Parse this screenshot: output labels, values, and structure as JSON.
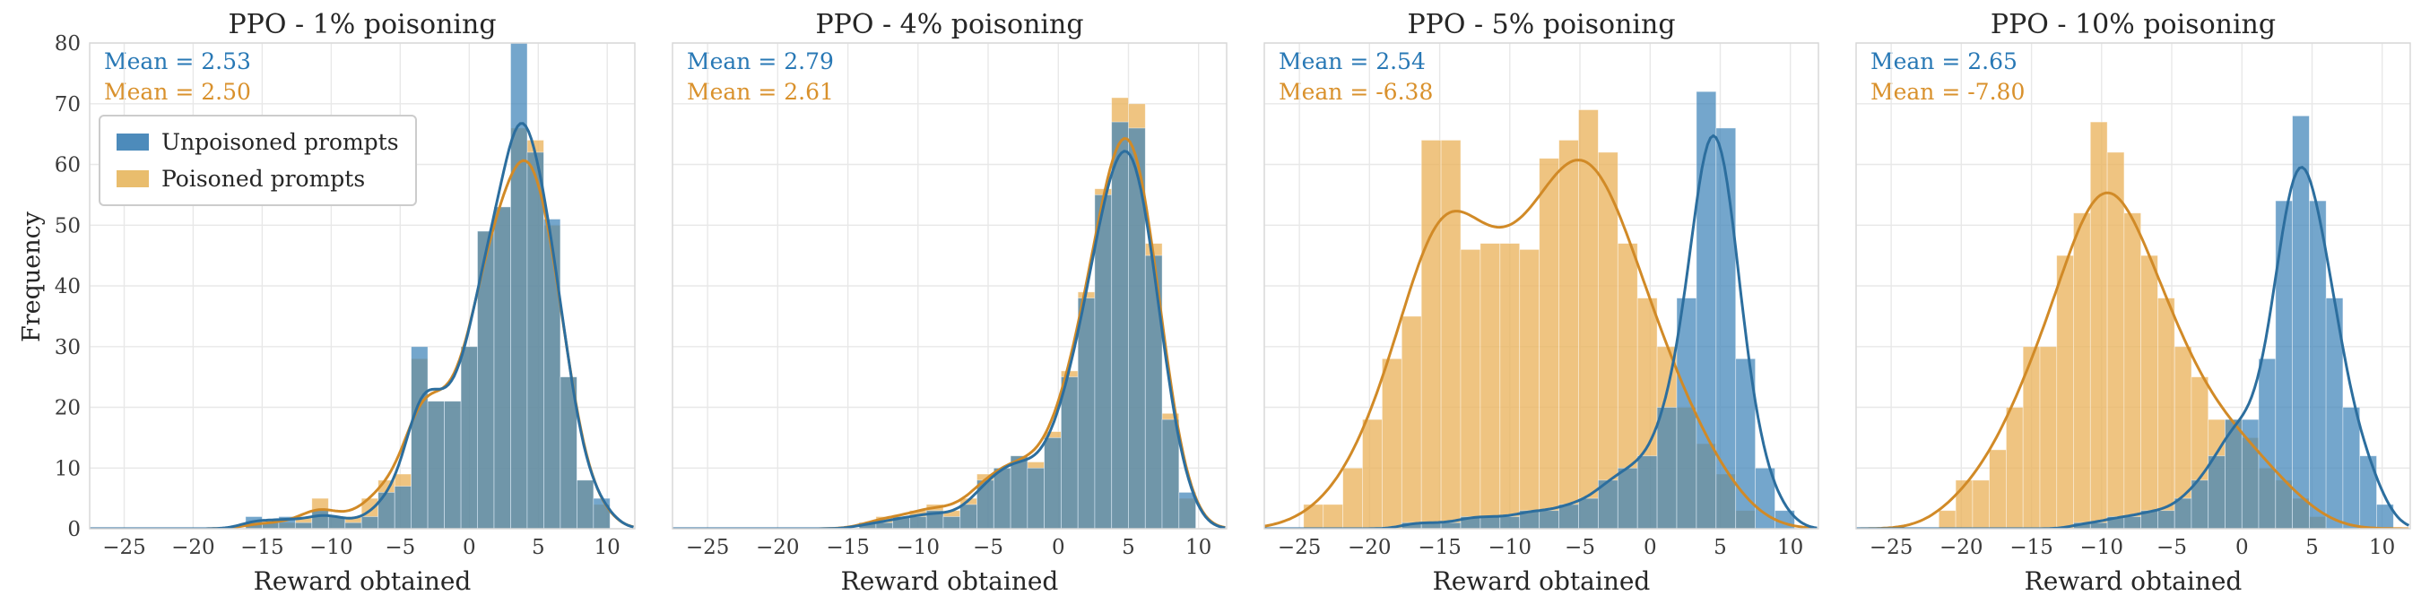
{
  "figure": {
    "xlabel": "Reward obtained",
    "ylabel": "Frequency",
    "legend": {
      "unpoisoned": "Unpoisoned prompts",
      "poisoned": "Poisoned prompts"
    },
    "colors": {
      "unpoisoned_bar": "#4d8bbb",
      "poisoned_bar": "#e9bd6d",
      "unpoisoned_line": "#2c6e9e",
      "poisoned_line": "#d18a27",
      "mean_text_blue": "#2878b5",
      "mean_text_orange": "#d9912c"
    }
  },
  "chart_data": {
    "type": "bar",
    "subtype": "overlaid-histograms-with-kde",
    "xlabel": "Reward obtained",
    "ylabel": "Frequency",
    "xlim": [
      -27.5,
      12
    ],
    "ylim": [
      0,
      80
    ],
    "xticks": [
      -25,
      -20,
      -15,
      -10,
      -5,
      0,
      5,
      10
    ],
    "yticks": [
      0,
      10,
      20,
      30,
      40,
      50,
      60,
      70,
      80
    ],
    "grid": true,
    "legend_position": "upper-left-first-panel",
    "legend_entries": [
      "Unpoisoned prompts",
      "Poisoned prompts"
    ],
    "panels": [
      {
        "title": "PPO - 1% poisoning",
        "mean_unpoisoned": 2.53,
        "mean_poisoned": 2.5,
        "mean_unpoisoned_label": "Mean = 2.53",
        "mean_poisoned_label": "Mean = 2.50",
        "bin_width": 1.2,
        "bin_centers": [
          -15.6,
          -14.4,
          -13.2,
          -12,
          -10.8,
          -9.6,
          -8.4,
          -7.2,
          -6,
          -4.8,
          -3.6,
          -2.4,
          -1.2,
          0,
          1.2,
          2.4,
          3.6,
          4.8,
          6,
          7.2,
          8.4,
          9.6
        ],
        "unpoisoned": [
          2,
          1,
          2,
          1,
          3,
          2,
          1,
          2,
          6,
          7,
          30,
          21,
          21,
          30,
          49,
          53,
          80,
          62,
          51,
          25,
          8,
          5
        ],
        "poisoned": [
          1,
          1,
          1,
          2,
          5,
          2,
          2,
          5,
          8,
          9,
          28,
          21,
          21,
          30,
          49,
          53,
          66,
          64,
          50,
          25,
          8,
          4
        ],
        "kde_bw_unpoisoned": 1.1,
        "kde_bw_poisoned": 1.2
      },
      {
        "title": "PPO - 4% poisoning",
        "mean_unpoisoned": 2.79,
        "mean_poisoned": 2.61,
        "mean_unpoisoned_label": "Mean = 2.79",
        "mean_poisoned_label": "Mean = 2.61",
        "bin_width": 1.2,
        "bin_centers": [
          -13.6,
          -12.4,
          -11.2,
          -10,
          -8.8,
          -7.6,
          -6.4,
          -5.2,
          -4,
          -2.8,
          -1.6,
          -0.4,
          0.8,
          2,
          3.2,
          4.4,
          5.6,
          6.8,
          8,
          9.2
        ],
        "unpoisoned": [
          1,
          1,
          2,
          2,
          3,
          2,
          4,
          8,
          10,
          12,
          10,
          15,
          25,
          38,
          55,
          67,
          66,
          45,
          18,
          6
        ],
        "poisoned": [
          1,
          2,
          2,
          3,
          4,
          3,
          5,
          9,
          10,
          12,
          11,
          16,
          26,
          39,
          56,
          71,
          70,
          47,
          19,
          5
        ],
        "kde_bw_unpoisoned": 1.1,
        "kde_bw_poisoned": 1.2
      },
      {
        "title": "PPO - 5% poisoning",
        "mean_unpoisoned": 2.54,
        "mean_poisoned": -6.38,
        "mean_unpoisoned_label": "Mean = 2.54",
        "mean_poisoned_label": "Mean = -6.38",
        "bin_width": 1.4,
        "bin_centers": [
          -24,
          -22.6,
          -21.2,
          -19.8,
          -18.4,
          -17,
          -15.6,
          -14.2,
          -12.8,
          -11.4,
          -10,
          -8.6,
          -7.2,
          -5.8,
          -4.4,
          -3,
          -1.6,
          -0.2,
          1.2,
          2.6,
          4,
          5.4,
          6.8,
          8.2,
          9.6
        ],
        "unpoisoned": [
          0,
          0,
          0,
          0,
          0,
          1,
          1,
          1,
          2,
          2,
          2,
          3,
          3,
          4,
          5,
          8,
          10,
          12,
          20,
          38,
          72,
          66,
          28,
          10,
          3
        ],
        "poisoned": [
          4,
          4,
          10,
          18,
          28,
          35,
          64,
          64,
          46,
          47,
          47,
          46,
          61,
          64,
          69,
          62,
          47,
          38,
          30,
          20,
          14,
          9,
          3,
          0,
          0
        ],
        "kde_bw_unpoisoned": 1.0,
        "kde_bw_poisoned": 2.2
      },
      {
        "title": "PPO - 10% poisoning",
        "mean_unpoisoned": 2.65,
        "mean_poisoned": -7.8,
        "mean_unpoisoned_label": "Mean = 2.65",
        "mean_poisoned_label": "Mean = -7.80",
        "bin_width": 1.2,
        "bin_centers": [
          -21,
          -19.8,
          -18.6,
          -17.4,
          -16.2,
          -15,
          -13.8,
          -12.6,
          -11.4,
          -10.2,
          -9,
          -7.8,
          -6.6,
          -5.4,
          -4.2,
          -3,
          -1.8,
          -0.6,
          0.6,
          1.8,
          3,
          4.2,
          5.4,
          6.6,
          7.8,
          9,
          10.2
        ],
        "unpoisoned": [
          0,
          0,
          0,
          0,
          0,
          0,
          0,
          0,
          1,
          1,
          2,
          2,
          3,
          3,
          5,
          8,
          12,
          18,
          18,
          28,
          54,
          68,
          54,
          38,
          20,
          12,
          4
        ],
        "poisoned": [
          3,
          8,
          8,
          13,
          20,
          30,
          30,
          45,
          52,
          67,
          62,
          52,
          45,
          38,
          30,
          25,
          18,
          18,
          15,
          10,
          8,
          5,
          2,
          0,
          0,
          0,
          0
        ],
        "kde_bw_unpoisoned": 1.0,
        "kde_bw_poisoned": 2.0
      }
    ]
  }
}
